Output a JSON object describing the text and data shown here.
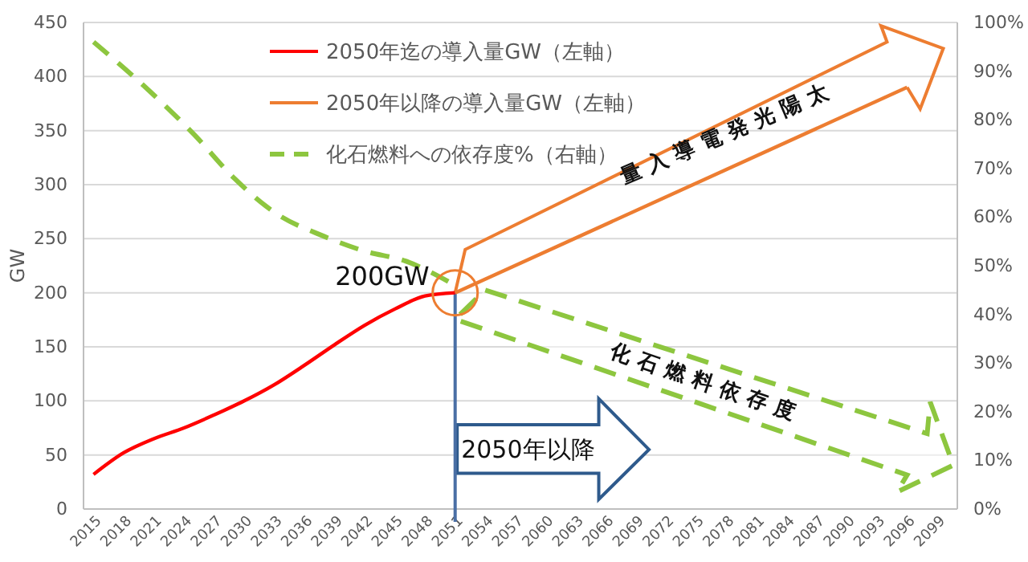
{
  "chart_data": {
    "type": "line",
    "ylabel": "GW",
    "xlim": [
      2014,
      2101
    ],
    "xticks": [
      2015,
      2018,
      2021,
      2024,
      2027,
      2030,
      2033,
      2036,
      2039,
      2042,
      2045,
      2048,
      2051,
      2054,
      2057,
      2060,
      2063,
      2066,
      2069,
      2072,
      2075,
      2078,
      2081,
      2084,
      2087,
      2090,
      2093,
      2096,
      2099
    ],
    "ylim": [
      0,
      450
    ],
    "yticks": [
      0,
      50,
      100,
      150,
      200,
      250,
      300,
      350,
      400,
      450
    ],
    "y2lim": [
      0,
      100
    ],
    "y2ticks": [
      {
        "value": 0,
        "label": "0%"
      },
      {
        "value": 10,
        "label": "10%"
      },
      {
        "value": 20,
        "label": "20%"
      },
      {
        "value": 30,
        "label": "30%"
      },
      {
        "value": 40,
        "label": "40%"
      },
      {
        "value": 50,
        "label": "50%"
      },
      {
        "value": 60,
        "label": "60%"
      },
      {
        "value": 70,
        "label": "70%"
      },
      {
        "value": 80,
        "label": "80%"
      },
      {
        "value": 90,
        "label": "90%"
      },
      {
        "value": 100,
        "label": "100%"
      }
    ],
    "grid": "y",
    "legend": "top",
    "series": [
      {
        "name": "2050年迄の導入量GW（左軸）",
        "color": "#ff0000",
        "line_style": "solid",
        "x": [
          2015,
          2018,
          2021,
          2024,
          2027,
          2030,
          2033,
          2036,
          2039,
          2042,
          2045,
          2048,
          2051
        ],
        "values": [
          32,
          52,
          65,
          75,
          87,
          100,
          115,
          133,
          152,
          170,
          185,
          197,
          200
        ]
      },
      {
        "name": "2050年以降の導入量GW（左軸）",
        "color": "#ed7d31",
        "line_style": "solid",
        "x": [
          2051,
          2096
        ],
        "values": [
          200,
          390
        ]
      },
      {
        "name": "化石燃料への依存度%（右軸）",
        "color": "#8dc63f",
        "line_style": "dashed",
        "axis": "y2",
        "x": [
          2015,
          2020,
          2025,
          2029,
          2033,
          2038,
          2042,
          2046,
          2051
        ],
        "values": [
          96,
          87,
          77,
          68,
          61,
          56,
          53,
          51,
          46
        ]
      }
    ],
    "ref_lines": [
      {
        "axis": "x",
        "value": 2051,
        "color": "#4a6fa5"
      }
    ],
    "annotations": [
      {
        "text": "200GW",
        "x": 2051,
        "y": 200
      },
      "2050年以降",
      "太陽光発電導入量",
      "化石燃料依存度"
    ]
  }
}
